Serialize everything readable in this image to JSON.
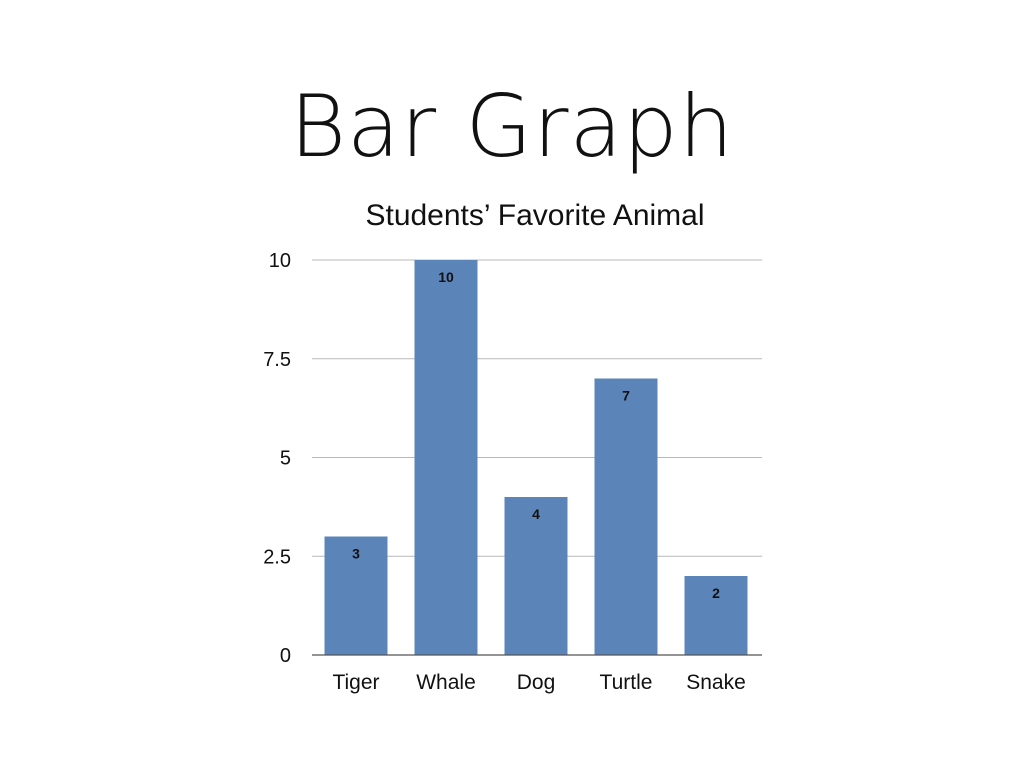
{
  "slide": {
    "title": "Bar Graph"
  },
  "chart_data": {
    "type": "bar",
    "title": "Students’ Favorite Animal",
    "xlabel": "",
    "ylabel": "",
    "categories": [
      "Tiger",
      "Whale",
      "Dog",
      "Turtle",
      "Snake"
    ],
    "values": [
      3,
      10,
      4,
      7,
      2
    ],
    "data_labels": [
      "3",
      "10",
      "4",
      "7",
      "2"
    ],
    "yticks": [
      0,
      2.5,
      5,
      7.5,
      10
    ],
    "ytick_labels": [
      "0",
      "2.5",
      "5",
      "7.5",
      "10"
    ],
    "ylim": [
      0,
      10
    ],
    "grid": true,
    "legend": "none",
    "bar_color": "#5b84b9"
  }
}
